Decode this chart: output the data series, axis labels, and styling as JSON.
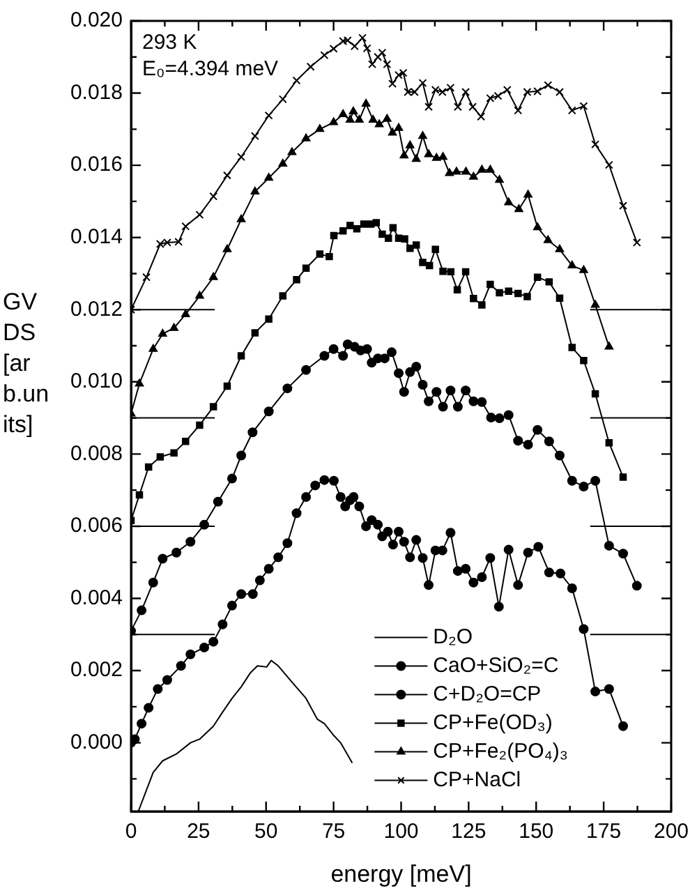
{
  "chart_data": {
    "type": "line",
    "xlabel": "energy [meV]",
    "ylabel": "GVDS [arb.units]",
    "annotations": [
      "293 K",
      "E₀=4.394 meV"
    ],
    "xlim": [
      0,
      200
    ],
    "xticks": [
      0,
      {
        "value": 12.5,
        "label": null
      },
      25,
      {
        "value": 37.5,
        "label": null
      },
      50,
      {
        "value": 62.5,
        "label": null
      },
      75,
      {
        "value": 87.5,
        "label": null
      },
      100,
      {
        "value": 112.5,
        "label": null
      },
      125,
      {
        "value": 137.5,
        "label": null
      },
      150,
      {
        "value": 162.5,
        "label": null
      },
      175,
      {
        "value": 187.5,
        "label": null
      },
      200
    ],
    "ylim": [
      -0.0019,
      0.02
    ],
    "yticks": [
      {
        "value": -0.001,
        "label": null
      },
      {
        "value": 0,
        "label": "0.000"
      },
      {
        "value": 0.001,
        "label": null
      },
      {
        "value": 0.002,
        "label": "0.002"
      },
      {
        "value": 0.003,
        "label": null
      },
      {
        "value": 0.004,
        "label": "0.004"
      },
      {
        "value": 0.005,
        "label": null
      },
      {
        "value": 0.006,
        "label": "0.006"
      },
      {
        "value": 0.007,
        "label": null
      },
      {
        "value": 0.008,
        "label": "0.008"
      },
      {
        "value": 0.009,
        "label": null
      },
      {
        "value": 0.01,
        "label": "0.010"
      },
      {
        "value": 0.011,
        "label": null
      },
      {
        "value": 0.012,
        "label": "0.012"
      },
      {
        "value": 0.013,
        "label": null
      },
      {
        "value": 0.014,
        "label": "0.014"
      },
      {
        "value": 0.015,
        "label": null
      },
      {
        "value": 0.016,
        "label": "0.016"
      },
      {
        "value": 0.017,
        "label": null
      },
      {
        "value": 0.018,
        "label": "0.018"
      },
      {
        "value": 0.019,
        "label": null
      },
      {
        "value": 0.02,
        "label": "0.020"
      }
    ],
    "legend": "bottom right",
    "series": [
      {
        "name": "D₂O",
        "color": "#000000",
        "marker": "none",
        "x": [
          2.7,
          8.2,
          11.7,
          16.8,
          22,
          25.4,
          30.5,
          33.9,
          37.4,
          40.8,
          44.2,
          46.8,
          50.2,
          51.9,
          54.5,
          59.6,
          64.8,
          69,
          71.6,
          75.1,
          77.6,
          81.9
        ],
        "values": [
          -0.0019,
          -0.00082,
          -0.0005,
          -0.00031,
          0,
          0.0001,
          0.00046,
          0.00085,
          0.00123,
          0.00155,
          0.00194,
          0.00213,
          0.0021,
          0.00228,
          0.00213,
          0.00168,
          0.00123,
          0.00065,
          0.00053,
          0.0002,
          0,
          -0.00056
        ]
      },
      {
        "name": "CaO+SiO₂=C",
        "color": "#000000",
        "marker": "circle",
        "x": [
          0,
          1.4,
          3.9,
          6.5,
          9.9,
          13.4,
          18.5,
          22,
          27.1,
          30.5,
          33.9,
          37.4,
          40.8,
          45.1,
          47.7,
          51,
          54.5,
          57.9,
          61.3,
          64.8,
          68.2,
          71.6,
          75.1,
          77.6,
          79.3,
          81.1,
          82.4,
          84.5,
          87,
          89.1,
          91.4,
          93,
          95.1,
          97,
          99.1,
          101.1,
          103.3,
          105.6,
          108,
          110.2,
          112.7,
          115.3,
          118.3,
          121,
          123.9,
          126.8,
          129.9,
          133,
          136.2,
          139.8,
          143.3,
          147,
          150.8,
          154.8,
          159,
          163.3,
          167.6,
          171.9,
          177,
          182.2
        ],
        "values": [
          0,
          0.0001,
          0.00053,
          0.00097,
          0.00149,
          0.00174,
          0.00213,
          0.00245,
          0.00264,
          0.0028,
          0.00328,
          0.0038,
          0.00412,
          0.00412,
          0.0045,
          0.00482,
          0.00514,
          0.00553,
          0.00636,
          0.00681,
          0.00713,
          0.00728,
          0.00726,
          0.00681,
          0.00655,
          0.00672,
          0.00681,
          0.00655,
          0.006,
          0.00617,
          0.00604,
          0.00572,
          0.00585,
          0.00549,
          0.00585,
          0.00557,
          0.00514,
          0.00562,
          0.00512,
          0.00437,
          0.00533,
          0.00533,
          0.00582,
          0.00476,
          0.00482,
          0.00444,
          0.00459,
          0.00512,
          0.00377,
          0.00535,
          0.00437,
          0.00527,
          0.00543,
          0.00472,
          0.00469,
          0.00428,
          0.00315,
          0.00142,
          0.00149,
          0.00046
        ]
      },
      {
        "name": "C+D₂O=CP",
        "color": "#000000",
        "marker": "circle",
        "x": [
          0,
          3.9,
          8.2,
          11.7,
          16.8,
          22,
          27.1,
          32.2,
          37.4,
          40.8,
          45,
          51,
          57.9,
          64.8,
          71.6,
          75,
          78.5,
          80.2,
          82.8,
          85,
          87.4,
          89.1,
          91.4,
          93.9,
          96.5,
          99.1,
          101.1,
          103.3,
          105.6,
          108,
          110.2,
          113.1,
          115.5,
          118.3,
          121,
          123.9,
          126.8,
          129.9,
          133.3,
          136.4,
          139.8,
          143.3,
          147,
          150.5,
          154.8,
          158.7,
          163.3,
          167.6,
          171.9,
          177,
          182.2,
          187.3
        ],
        "values": [
          0.0031,
          0.00367,
          0.00444,
          0.0051,
          0.00527,
          0.00557,
          0.00604,
          0.00668,
          0.00732,
          0.00796,
          0.0086,
          0.00918,
          0.00982,
          0.01033,
          0.01072,
          0.01091,
          0.01072,
          0.01104,
          0.01097,
          0.01087,
          0.01091,
          0.01053,
          0.01065,
          0.01065,
          0.01082,
          0.01024,
          0.00972,
          0.01027,
          0.01042,
          0.00992,
          0.00946,
          0.00972,
          0.00931,
          0.00976,
          0.00931,
          0.00976,
          0.00946,
          0.00944,
          0.00901,
          0.00899,
          0.00908,
          0.00837,
          0.00826,
          0.00867,
          0.00835,
          0.00796,
          0.00726,
          0.0071,
          0.00726,
          0.00546,
          0.00524,
          0.00435
        ]
      },
      {
        "name": "CP+Fe(OD₃)",
        "color": "#000000",
        "marker": "square",
        "x": [
          0,
          3.1,
          6.5,
          10.8,
          15.9,
          20.2,
          25.4,
          30.5,
          35.6,
          40.8,
          45.9,
          51,
          56.2,
          61.3,
          64.8,
          69.9,
          73.4,
          75.1,
          78.5,
          81.1,
          83.6,
          86.2,
          88.8,
          90.8,
          93,
          95.3,
          97,
          99.1,
          101.3,
          103.3,
          105.6,
          108,
          110.5,
          112.7,
          115.5,
          118.4,
          120.8,
          123.9,
          126.8,
          129.9,
          133,
          136.4,
          139.8,
          143.3,
          146.7,
          150.5,
          154.8,
          158.7,
          163.3,
          167.6,
          171.9,
          177,
          182.2
        ],
        "values": [
          0.00616,
          0.00687,
          0.00764,
          0.00792,
          0.00803,
          0.00835,
          0.0088,
          0.00931,
          0.00988,
          0.01072,
          0.01136,
          0.01174,
          0.01238,
          0.01283,
          0.01315,
          0.01354,
          0.01347,
          0.01405,
          0.01418,
          0.01433,
          0.01424,
          0.01437,
          0.01437,
          0.01441,
          0.01409,
          0.01398,
          0.01427,
          0.01398,
          0.01396,
          0.0137,
          0.01379,
          0.01331,
          0.01322,
          0.01367,
          0.01306,
          0.01305,
          0.01255,
          0.01305,
          0.01231,
          0.01213,
          0.0127,
          0.01247,
          0.01251,
          0.01245,
          0.01236,
          0.0129,
          0.01277,
          0.01232,
          0.01095,
          0.01059,
          0.00967,
          0.00831,
          0.00736
        ]
      },
      {
        "name": "CP+Fe₂(PO₄)₃",
        "color": "#000000",
        "marker": "triangle",
        "x": [
          0,
          3.1,
          8.2,
          11.7,
          15.9,
          20.2,
          25.4,
          30.5,
          35.6,
          40.8,
          45.9,
          51,
          56.2,
          59.6,
          64.8,
          69.9,
          75,
          78.5,
          81.1,
          82.3,
          84.5,
          87,
          89.6,
          91.9,
          94.8,
          96.8,
          99.1,
          101.1,
          103.3,
          105.6,
          108,
          110.2,
          113.1,
          115.5,
          117.9,
          120.5,
          124,
          126.8,
          129.9,
          133,
          136.4,
          139.8,
          143.6,
          147,
          150.5,
          154.4,
          158.7,
          163.3,
          167.6,
          171.9,
          177
        ],
        "values": [
          0.00912,
          0.00995,
          0.01091,
          0.01133,
          0.01149,
          0.01187,
          0.01238,
          0.0129,
          0.01367,
          0.0145,
          0.01527,
          0.01565,
          0.01604,
          0.01636,
          0.01674,
          0.017,
          0.01719,
          0.01741,
          0.01726,
          0.01749,
          0.01726,
          0.0177,
          0.01726,
          0.01713,
          0.01728,
          0.0169,
          0.01703,
          0.01627,
          0.01655,
          0.01617,
          0.01681,
          0.0163,
          0.0162,
          0.01623,
          0.01578,
          0.01582,
          0.01582,
          0.01568,
          0.01587,
          0.01587,
          0.01559,
          0.01497,
          0.01478,
          0.01518,
          0.01428,
          0.01392,
          0.01367,
          0.01322,
          0.01309,
          0.01213,
          0.01097
        ]
      },
      {
        "name": "CP+NaCl",
        "color": "#000000",
        "marker": "cross",
        "x": [
          0,
          5.7,
          10.8,
          13.4,
          17.6,
          20.2,
          25.4,
          30.5,
          35.6,
          40.8,
          45.9,
          51,
          56.2,
          61.3,
          66.5,
          71.6,
          75,
          78.5,
          80.2,
          82.8,
          85.7,
          87.4,
          89.3,
          91.4,
          93,
          94.8,
          96.8,
          99.1,
          100.8,
          102.5,
          105,
          108,
          110.2,
          112.7,
          115.3,
          118.3,
          121,
          123.9,
          126.5,
          129.6,
          133,
          135.9,
          139.3,
          143.3,
          146.7,
          150.5,
          154.4,
          158.7,
          163.3,
          167.6,
          171.9,
          177,
          182.2,
          187.3
        ],
        "values": [
          0.012,
          0.0129,
          0.01382,
          0.01386,
          0.01388,
          0.01431,
          0.01463,
          0.01514,
          0.01572,
          0.01623,
          0.01681,
          0.01738,
          0.01783,
          0.01835,
          0.01873,
          0.01905,
          0.01923,
          0.01944,
          0.01946,
          0.0193,
          0.01953,
          0.01924,
          0.0188,
          0.019,
          0.01912,
          0.0188,
          0.01826,
          0.0185,
          0.01856,
          0.01803,
          0.01803,
          0.01828,
          0.01762,
          0.01809,
          0.01803,
          0.01815,
          0.01762,
          0.01803,
          0.01762,
          0.01735,
          0.01786,
          0.01792,
          0.01809,
          0.01752,
          0.01803,
          0.01805,
          0.01822,
          0.01803,
          0.01752,
          0.01764,
          0.01658,
          0.01601,
          0.01488,
          0.01386
        ]
      },
      {
        "color": "#000000",
        "marker": "none",
        "x": [
          0,
          31
        ],
        "values": [
          0.003,
          0.003
        ]
      },
      {
        "color": "#000000",
        "marker": "none",
        "x": [
          170,
          200
        ],
        "values": [
          0.003,
          0.003
        ]
      },
      {
        "color": "#000000",
        "marker": "none",
        "x": [
          0,
          31
        ],
        "values": [
          0.006,
          0.006
        ]
      },
      {
        "color": "#000000",
        "marker": "none",
        "x": [
          170,
          200
        ],
        "values": [
          0.006,
          0.006
        ]
      },
      {
        "color": "#000000",
        "marker": "none",
        "x": [
          0,
          31
        ],
        "values": [
          0.009,
          0.009
        ]
      },
      {
        "color": "#000000",
        "marker": "none",
        "x": [
          170,
          200
        ],
        "values": [
          0.009,
          0.009
        ]
      },
      {
        "color": "#000000",
        "marker": "none",
        "x": [
          0,
          31
        ],
        "values": [
          0.012,
          0.012
        ]
      },
      {
        "color": "#000000",
        "marker": "none",
        "x": [
          170,
          200
        ],
        "values": [
          0.012,
          0.012
        ]
      }
    ]
  }
}
